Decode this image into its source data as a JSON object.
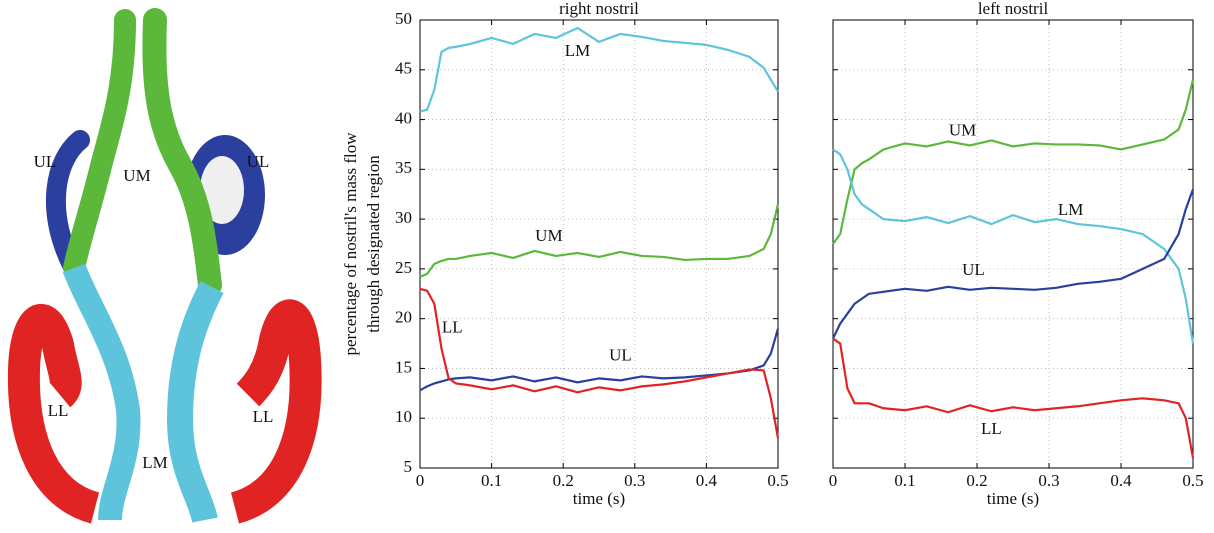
{
  "diagram": {
    "labels": [
      "UL",
      "UM",
      "UL",
      "LL",
      "LM",
      "LL"
    ]
  },
  "chart_data": [
    {
      "type": "line",
      "title": "right nostril",
      "xlabel": "time (s)",
      "ylabel": [
        "percentage of nostril's mass flow",
        "through designated region"
      ],
      "x": [
        0,
        0.01,
        0.02,
        0.03,
        0.04,
        0.05,
        0.07,
        0.1,
        0.13,
        0.16,
        0.19,
        0.22,
        0.25,
        0.28,
        0.31,
        0.34,
        0.37,
        0.4,
        0.43,
        0.46,
        0.48,
        0.49,
        0.5
      ],
      "xlim": [
        0,
        0.5
      ],
      "xticks": [
        0,
        0.1,
        0.2,
        0.3,
        0.4,
        0.5
      ],
      "ylim": [
        5,
        50
      ],
      "yticks": [
        5,
        10,
        15,
        20,
        25,
        30,
        35,
        40,
        45,
        50
      ],
      "show_ytick_labels": true,
      "grid": true,
      "series": [
        {
          "name": "LM",
          "color": "#5ec4dc",
          "values": [
            40.8,
            41,
            43,
            46.8,
            47.2,
            47.3,
            47.6,
            48.2,
            47.6,
            48.6,
            48.2,
            49.2,
            47.8,
            48.6,
            48.3,
            47.9,
            47.7,
            47.5,
            47,
            46.3,
            45.2,
            44,
            42.8
          ]
        },
        {
          "name": "UM",
          "color": "#5cb83a",
          "values": [
            24.2,
            24.5,
            25.5,
            25.8,
            26,
            26,
            26.3,
            26.6,
            26.1,
            26.8,
            26.3,
            26.6,
            26.2,
            26.7,
            26.3,
            26.2,
            25.9,
            26,
            26,
            26.3,
            27,
            28.5,
            31.5
          ]
        },
        {
          "name": "UL",
          "color": "#2a3f9e",
          "values": [
            12.8,
            13.2,
            13.5,
            13.7,
            13.9,
            14,
            14.1,
            13.8,
            14.2,
            13.7,
            14.1,
            13.6,
            14,
            13.8,
            14.2,
            14,
            14.1,
            14.3,
            14.5,
            14.8,
            15.3,
            16.5,
            19
          ]
        },
        {
          "name": "LL",
          "color": "#e02424",
          "values": [
            23,
            22.8,
            21.5,
            17,
            14,
            13.5,
            13.3,
            12.9,
            13.3,
            12.7,
            13.2,
            12.6,
            13.1,
            12.8,
            13.2,
            13.4,
            13.7,
            14.1,
            14.5,
            14.9,
            14.8,
            12,
            8
          ]
        }
      ]
    },
    {
      "type": "line",
      "title": "left nostril",
      "xlabel": "time (s)",
      "x": [
        0,
        0.01,
        0.02,
        0.03,
        0.04,
        0.05,
        0.07,
        0.1,
        0.13,
        0.16,
        0.19,
        0.22,
        0.25,
        0.28,
        0.31,
        0.34,
        0.37,
        0.4,
        0.43,
        0.46,
        0.48,
        0.49,
        0.5
      ],
      "xlim": [
        0,
        0.5
      ],
      "xticks": [
        0,
        0.1,
        0.2,
        0.3,
        0.4,
        0.5
      ],
      "ylim": [
        5,
        50
      ],
      "yticks": [
        5,
        10,
        15,
        20,
        25,
        30,
        35,
        40,
        45,
        50
      ],
      "show_ytick_labels": false,
      "grid": true,
      "series": [
        {
          "name": "UM",
          "color": "#5cb83a",
          "values": [
            27.5,
            28.5,
            32,
            35,
            35.6,
            36,
            37,
            37.6,
            37.3,
            37.8,
            37.4,
            37.9,
            37.3,
            37.6,
            37.5,
            37.5,
            37.4,
            37,
            37.5,
            38,
            39,
            41,
            44
          ]
        },
        {
          "name": "LM",
          "color": "#5ec4dc",
          "values": [
            37,
            36.5,
            35,
            32.5,
            31.5,
            31,
            30,
            29.8,
            30.2,
            29.6,
            30.3,
            29.5,
            30.4,
            29.7,
            30,
            29.5,
            29.3,
            29,
            28.5,
            27,
            25,
            22,
            17.5
          ]
        },
        {
          "name": "UL",
          "color": "#2a3f9e",
          "values": [
            18,
            19.5,
            20.5,
            21.5,
            22,
            22.5,
            22.7,
            23,
            22.8,
            23.2,
            22.9,
            23.1,
            23,
            22.9,
            23.1,
            23.5,
            23.7,
            24,
            25,
            26,
            28.5,
            31,
            33
          ]
        },
        {
          "name": "LL",
          "color": "#e02424",
          "values": [
            18,
            17.5,
            13,
            11.5,
            11.5,
            11.5,
            11,
            10.8,
            11.2,
            10.6,
            11.3,
            10.7,
            11.1,
            10.8,
            11,
            11.2,
            11.5,
            11.8,
            12,
            11.8,
            11.5,
            10,
            6
          ]
        }
      ]
    }
  ]
}
